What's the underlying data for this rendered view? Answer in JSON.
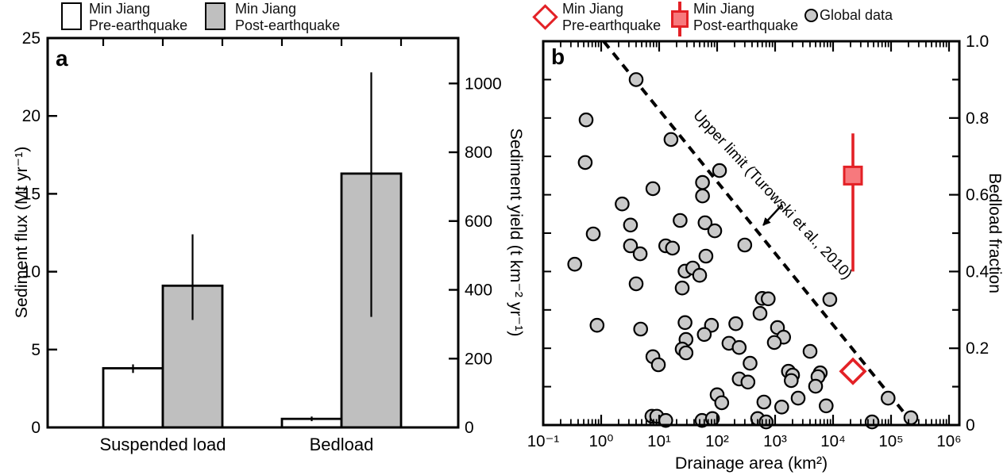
{
  "chart_data": [
    {
      "panel_label": "a",
      "type": "bar",
      "categories": [
        "Suspended load",
        "Bedload"
      ],
      "series": [
        {
          "name": "Min Jiang Pre-earthquake",
          "fill": "#ffffff",
          "values": [
            3.8,
            0.55
          ],
          "err_lo": [
            3.5,
            0.4
          ],
          "err_hi": [
            4.05,
            0.7
          ]
        },
        {
          "name": "Min Jiang Post-earthquake",
          "fill": "#bfbfbf",
          "values": [
            9.1,
            16.3
          ],
          "err_lo": [
            6.9,
            7.1
          ],
          "err_hi": [
            12.4,
            22.8
          ]
        }
      ],
      "y_left": {
        "label": "Sediment flux (Mt yr⁻¹)",
        "ticks": [
          0,
          5,
          10,
          15,
          20,
          25
        ],
        "min": 0,
        "max": 25
      },
      "y_right": {
        "label": "Sediment yield (t km⁻² yr⁻¹)",
        "ticks": [
          0,
          200,
          400,
          600,
          800,
          1000
        ],
        "min": 0,
        "max": 1132
      },
      "legend": [
        {
          "line1": "Min Jiang",
          "line2": "Pre-earthquake"
        },
        {
          "line1": "Min Jiang",
          "line2": "Post-earthquake"
        }
      ]
    },
    {
      "panel_label": "b",
      "type": "scatter",
      "x_axis": {
        "label": "Drainage area (km²)",
        "scale": "log",
        "min_exp": -1,
        "max_exp": 6,
        "decade_labels": [
          "10⁻¹",
          "10⁰",
          "10¹",
          "10²",
          "10³",
          "10⁴",
          "10⁵",
          "10⁶"
        ]
      },
      "y_axis": {
        "label": "Bedload fraction",
        "min": 0,
        "max": 1,
        "major_ticks": [
          0,
          0.2,
          0.4,
          0.6,
          0.8,
          1.0
        ],
        "minor_step": 0.1,
        "tick_labels": [
          "0",
          "0.2",
          "0.4",
          "0.6",
          "0.8",
          "1.0"
        ]
      },
      "upper_limit": {
        "label": "Upper limit (Turowski et al., 2010)",
        "x1": 1.1,
        "fraction1": 1.0,
        "x2": 250000,
        "fraction2": 0.0,
        "style": "dashed"
      },
      "min_jiang_pre": {
        "name": "Min Jiang Pre-earthquake",
        "marker": "diamond",
        "area_km2": 22000,
        "bedload_fraction": 0.14
      },
      "min_jiang_post": {
        "name": "Min Jiang Post-earthquake",
        "marker": "square",
        "area_km2": 22000,
        "bedload_fraction": 0.65,
        "err_lo": 0.4,
        "err_hi": 0.76
      },
      "global_data": {
        "name": "Global data",
        "points": [
          [
            4.0,
            0.9
          ],
          [
            0.55,
            0.795
          ],
          [
            16,
            0.744
          ],
          [
            0.53,
            0.684
          ],
          [
            7.8,
            0.616
          ],
          [
            2.3,
            0.576
          ],
          [
            110,
            0.663
          ],
          [
            56,
            0.632
          ],
          [
            56,
            0.597
          ],
          [
            23,
            0.533
          ],
          [
            62,
            0.527
          ],
          [
            91,
            0.506
          ],
          [
            300,
            0.469
          ],
          [
            3.2,
            0.521
          ],
          [
            0.73,
            0.498
          ],
          [
            0.35,
            0.419
          ],
          [
            3.2,
            0.467
          ],
          [
            4.7,
            0.446
          ],
          [
            13,
            0.467
          ],
          [
            17,
            0.461
          ],
          [
            64,
            0.44
          ],
          [
            28,
            0.401
          ],
          [
            38,
            0.409
          ],
          [
            50,
            0.39
          ],
          [
            4.0,
            0.368
          ],
          [
            25,
            0.357
          ],
          [
            0.85,
            0.26
          ],
          [
            4.8,
            0.25
          ],
          [
            28,
            0.267
          ],
          [
            80,
            0.26
          ],
          [
            60,
            0.236
          ],
          [
            210,
            0.264
          ],
          [
            160,
            0.213
          ],
          [
            240,
            0.202
          ],
          [
            29,
            0.223
          ],
          [
            25,
            0.198
          ],
          [
            29,
            0.188
          ],
          [
            7.8,
            0.178
          ],
          [
            9.7,
            0.157
          ],
          [
            370,
            0.161
          ],
          [
            240,
            0.12
          ],
          [
            340,
            0.112
          ],
          [
            100,
            0.079
          ],
          [
            120,
            0.058
          ],
          [
            7.5,
            0.023
          ],
          [
            9.1,
            0.023
          ],
          [
            13,
            0.012
          ],
          [
            55,
            0.012
          ],
          [
            83,
            0.017
          ],
          [
            500,
            0.017
          ],
          [
            600,
            0.33
          ],
          [
            760,
            0.329
          ],
          [
            550,
            0.291
          ],
          [
            1100,
            0.254
          ],
          [
            1400,
            0.229
          ],
          [
            970,
            0.215
          ],
          [
            4000,
            0.192
          ],
          [
            1700,
            0.14
          ],
          [
            2000,
            0.13
          ],
          [
            1900,
            0.116
          ],
          [
            6000,
            0.136
          ],
          [
            5500,
            0.126
          ],
          [
            5000,
            0.101
          ],
          [
            640,
            0.06
          ],
          [
            1300,
            0.047
          ],
          [
            2500,
            0.07
          ],
          [
            7600,
            0.05
          ],
          [
            89000,
            0.07
          ],
          [
            700,
            0.008
          ],
          [
            47000,
            0.008
          ],
          [
            220000,
            0.019
          ],
          [
            8800,
            0.327
          ]
        ]
      },
      "colors": {
        "red": "#e32126",
        "red_fill": "#f7797d",
        "gray": "#c9c9c9"
      },
      "legend": [
        {
          "line1": "Min Jiang",
          "line2": "Pre-earthquake"
        },
        {
          "line1": "Min Jiang",
          "line2": "Post-earthquake"
        },
        {
          "line1": "Global data"
        }
      ]
    }
  ]
}
